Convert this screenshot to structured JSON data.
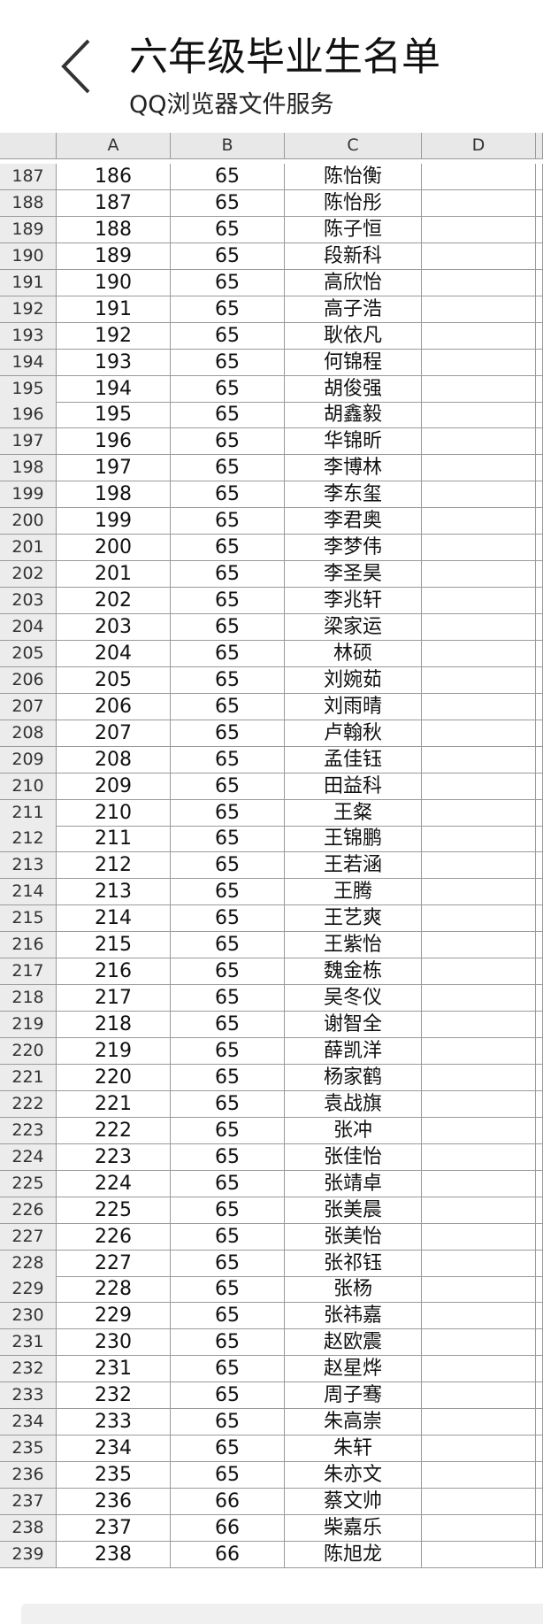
{
  "header": {
    "title": "六年级毕业生名单",
    "subtitle": "QQ浏览器文件服务"
  },
  "table": {
    "columns": [
      "A",
      "B",
      "C",
      "D"
    ],
    "rows": [
      [
        "187",
        "186",
        "65",
        "陈怡衡"
      ],
      [
        "188",
        "187",
        "65",
        "陈怡彤"
      ],
      [
        "189",
        "188",
        "65",
        "陈子恒"
      ],
      [
        "190",
        "189",
        "65",
        "段新科"
      ],
      [
        "191",
        "190",
        "65",
        "高欣怡"
      ],
      [
        "192",
        "191",
        "65",
        "高子浩"
      ],
      [
        "193",
        "192",
        "65",
        "耿依凡"
      ],
      [
        "194",
        "193",
        "65",
        "何锦程"
      ],
      [
        "195",
        "194",
        "65",
        "胡俊强"
      ],
      [
        "196",
        "195",
        "65",
        "胡鑫毅"
      ],
      [
        "197",
        "196",
        "65",
        "华锦昕"
      ],
      [
        "198",
        "197",
        "65",
        "李博林"
      ],
      [
        "199",
        "198",
        "65",
        "李东玺"
      ],
      [
        "200",
        "199",
        "65",
        "李君奥"
      ],
      [
        "201",
        "200",
        "65",
        "李梦伟"
      ],
      [
        "202",
        "201",
        "65",
        "李圣昊"
      ],
      [
        "203",
        "202",
        "65",
        "李兆轩"
      ],
      [
        "204",
        "203",
        "65",
        "梁家运"
      ],
      [
        "205",
        "204",
        "65",
        "林硕"
      ],
      [
        "206",
        "205",
        "65",
        "刘婉茹"
      ],
      [
        "207",
        "206",
        "65",
        "刘雨晴"
      ],
      [
        "208",
        "207",
        "65",
        "卢翰秋"
      ],
      [
        "209",
        "208",
        "65",
        "孟佳钰"
      ],
      [
        "210",
        "209",
        "65",
        "田益科"
      ],
      [
        "211",
        "210",
        "65",
        "王粲"
      ],
      [
        "212",
        "211",
        "65",
        "王锦鹏"
      ],
      [
        "213",
        "212",
        "65",
        "王若涵"
      ],
      [
        "214",
        "213",
        "65",
        "王腾"
      ],
      [
        "215",
        "214",
        "65",
        "王艺爽"
      ],
      [
        "216",
        "215",
        "65",
        "王紫怡"
      ],
      [
        "217",
        "216",
        "65",
        "魏金栋"
      ],
      [
        "218",
        "217",
        "65",
        "吴冬仪"
      ],
      [
        "219",
        "218",
        "65",
        "谢智全"
      ],
      [
        "220",
        "219",
        "65",
        "薛凯洋"
      ],
      [
        "221",
        "220",
        "65",
        "杨家鹤"
      ],
      [
        "222",
        "221",
        "65",
        "袁战旗"
      ],
      [
        "223",
        "222",
        "65",
        "张冲"
      ],
      [
        "224",
        "223",
        "65",
        "张佳怡"
      ],
      [
        "225",
        "224",
        "65",
        "张靖卓"
      ],
      [
        "226",
        "225",
        "65",
        "张美晨"
      ],
      [
        "227",
        "226",
        "65",
        "张美怡"
      ],
      [
        "228",
        "227",
        "65",
        "张祁钰"
      ],
      [
        "229",
        "228",
        "65",
        "张杨"
      ],
      [
        "230",
        "229",
        "65",
        "张祎嘉"
      ],
      [
        "231",
        "230",
        "65",
        "赵欧震"
      ],
      [
        "232",
        "231",
        "65",
        "赵星烨"
      ],
      [
        "233",
        "232",
        "65",
        "周子骞"
      ],
      [
        "234",
        "233",
        "65",
        "朱高崇"
      ],
      [
        "235",
        "234",
        "65",
        "朱轩"
      ],
      [
        "236",
        "235",
        "65",
        "朱亦文"
      ],
      [
        "237",
        "236",
        "66",
        "蔡文帅"
      ],
      [
        "238",
        "237",
        "66",
        "柴嘉乐"
      ],
      [
        "239",
        "238",
        "66",
        "陈旭龙"
      ]
    ]
  }
}
